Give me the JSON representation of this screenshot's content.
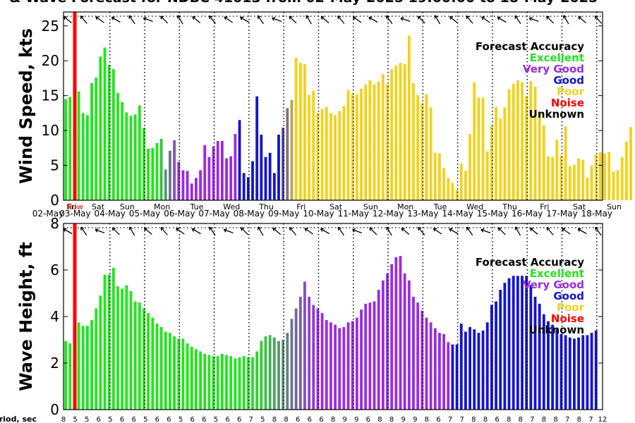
{
  "title": "& Wave Forecast for NDBC 41013 from 02-May-2025 19:00:00 to 18-May-2025",
  "colors": {
    "Excellent": "#22e51c",
    "Very Good": "#9a2be2",
    "Good": "#1414d2",
    "Poor": "#f2d21a",
    "Noise": "#ff0000",
    "Unknown": "#000000",
    "now_line": "#ff0000"
  },
  "day_labels": [
    "Fri",
    "Sat",
    "Sun",
    "Mon",
    "Tue",
    "Wed",
    "Thu",
    "Fri",
    "Sat",
    "Sun",
    "Mon",
    "Tue",
    "Wed",
    "Thu",
    "Fri",
    "Sat",
    "Sun"
  ],
  "date_labels": [
    "02-May",
    "03-May",
    "04-May",
    "05-May",
    "06-May",
    "07-May",
    "08-May",
    "09-May",
    "10-May",
    "11-May",
    "12-May",
    "13-May",
    "14-May",
    "15-May",
    "16-May",
    "17-May",
    "18-May"
  ],
  "now_label": "Now",
  "legend": {
    "title": "Forecast Accuracy",
    "entries": [
      "Excellent",
      "Very Good",
      "Good",
      "Poor",
      "Noise",
      "Unknown"
    ]
  },
  "period_label": "Period, sec",
  "period_ticks": [
    "8",
    "5",
    "5",
    "6",
    "5",
    "6",
    "6",
    "5",
    "6",
    "6",
    "5",
    "6",
    "6",
    "5",
    "6",
    "6",
    "7",
    "5",
    "8",
    "8",
    "6",
    "6",
    "6",
    "8",
    "9",
    "9",
    "6",
    "8",
    "8",
    "9",
    "9",
    "8",
    "6",
    "7",
    "7",
    "8",
    "8",
    "6",
    "8",
    "8",
    "7",
    "8",
    "8",
    "7",
    "8",
    "7",
    "12"
  ],
  "chart_data": [
    {
      "type": "bar",
      "ylabel": "Wind Speed, kts",
      "ylim": [
        0,
        27
      ],
      "yticks": [
        0,
        5,
        10,
        15,
        20,
        25
      ],
      "x_axis": "hours since start, every 3 h",
      "colors_by_segment": [
        {
          "from": 0,
          "to": 22,
          "accuracy": "Excellent"
        },
        {
          "from": 22,
          "to": 26,
          "accuracy": "Excellent/Very Good blend"
        },
        {
          "from": 26,
          "to": 40,
          "accuracy": "Very Good"
        },
        {
          "from": 40,
          "to": 50,
          "accuracy": "Good"
        },
        {
          "from": 50,
          "to": 53,
          "accuracy": "Good/Poor blend"
        },
        {
          "from": 53,
          "to": 123,
          "accuracy": "Poor"
        }
      ],
      "values": [
        14.5,
        14.8,
        10.3,
        15.6,
        12.5,
        12.2,
        16.8,
        17.6,
        20.6,
        21.9,
        19.4,
        18.8,
        15.4,
        14.1,
        12.6,
        12.1,
        12.3,
        13.6,
        10.4,
        7.4,
        7.5,
        8.2,
        8.8,
        4.4,
        7.1,
        8.6,
        5.5,
        4.3,
        4.2,
        2.4,
        3.2,
        4.3,
        7.9,
        6.2,
        7.7,
        8.5,
        8.5,
        6.0,
        6.3,
        9.5,
        11.5,
        3.9,
        3.3,
        5.6,
        14.9,
        9.4,
        6.2,
        6.8,
        3.9,
        9.4,
        10.4,
        13.2,
        14.4,
        20.4,
        19.7,
        19.5,
        15.1,
        15.7,
        12.5,
        13.1,
        13.4,
        12.5,
        12.2,
        12.8,
        13.5,
        15.8,
        15.3,
        15.2,
        16.0,
        16.6,
        17.2,
        16.6,
        17.0,
        18.1,
        16.6,
        18.8,
        19.3,
        19.7,
        19.5,
        23.6,
        16.8,
        15.1,
        13.9,
        15.2,
        13.3,
        6.8,
        6.7,
        4.6,
        3.2,
        2.5,
        1.5,
        5.3,
        4.2,
        9.5,
        16.9,
        14.7,
        14.7,
        7.0,
        10.7,
        13.4,
        11.7,
        13.3,
        15.9,
        16.7,
        17.2,
        16.9,
        14.9,
        17.1,
        16.3,
        12.7,
        10.7,
        6.3,
        6.2,
        8.7,
        6.4,
        10.6,
        4.9,
        5.1,
        6.0,
        5.8,
        3.2,
        5.0,
        6.5,
        6.9,
        6.7,
        6.9,
        4.1,
        4.3,
        6.2,
        8.4,
        10.5
      ]
    },
    {
      "type": "bar",
      "ylabel": "Wave Height, ft",
      "ylim": [
        0,
        8
      ],
      "yticks": [
        0,
        2,
        4,
        6,
        8
      ],
      "x_axis": "hours since start, every 3 h",
      "colors_by_segment": [
        {
          "from": 0,
          "to": 44,
          "accuracy": "Excellent"
        },
        {
          "from": 44,
          "to": 58,
          "accuracy": "Excellent/Very Good blend"
        },
        {
          "from": 58,
          "to": 89,
          "accuracy": "Very Good"
        },
        {
          "from": 89,
          "to": 123,
          "accuracy": "Good"
        }
      ],
      "values": [
        2.95,
        2.85,
        2.5,
        3.75,
        3.6,
        3.6,
        3.85,
        4.35,
        4.9,
        5.8,
        5.8,
        6.1,
        5.3,
        5.2,
        5.35,
        5.1,
        4.65,
        4.6,
        4.35,
        4.15,
        3.95,
        3.7,
        3.55,
        3.35,
        3.3,
        3.15,
        3.05,
        3.05,
        2.85,
        2.7,
        2.6,
        2.5,
        2.4,
        2.35,
        2.3,
        2.3,
        2.4,
        2.35,
        2.3,
        2.2,
        2.25,
        2.3,
        2.25,
        2.25,
        2.5,
        2.95,
        3.15,
        3.2,
        3.1,
        2.95,
        3.0,
        3.3,
        3.9,
        4.35,
        4.85,
        5.5,
        4.85,
        4.5,
        4.35,
        4.15,
        3.85,
        3.75,
        3.65,
        3.5,
        3.55,
        3.75,
        3.8,
        3.95,
        4.3,
        4.55,
        4.6,
        4.65,
        5.15,
        5.55,
        5.85,
        6.25,
        6.55,
        6.6,
        5.85,
        5.55,
        4.85,
        4.6,
        4.25,
        3.95,
        3.75,
        3.5,
        3.3,
        3.25,
        2.9,
        2.8,
        2.8,
        3.7,
        3.35,
        3.55,
        3.45,
        3.3,
        3.4,
        3.75,
        4.5,
        4.65,
        5.15,
        5.45,
        5.65,
        5.75,
        5.75,
        5.75,
        5.75,
        5.35,
        4.85,
        4.55,
        4.1,
        3.8,
        3.65,
        3.45,
        3.25,
        3.2,
        3.1,
        3.05,
        3.1,
        3.2,
        3.2,
        3.3,
        3.4
      ]
    }
  ]
}
